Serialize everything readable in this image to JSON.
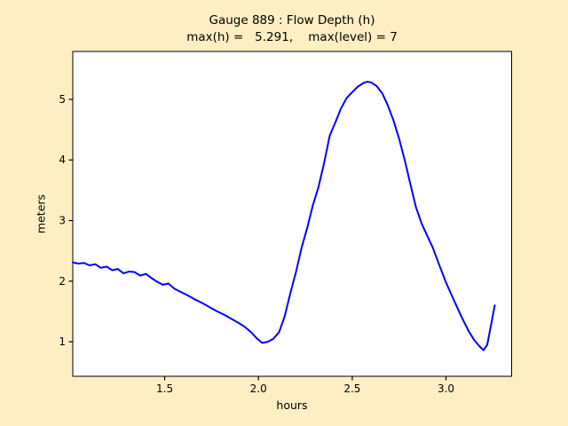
{
  "chart_data": {
    "type": "line",
    "title": "Gauge 889 : Flow Depth (h)",
    "subtitle": "max(h) =   5.291,    max(level) = 7",
    "max_h": "5.291",
    "max_level": "7",
    "xlabel": "hours",
    "ylabel": "meters",
    "xlim": [
      1.01,
      3.35
    ],
    "ylim": [
      0.43,
      5.79
    ],
    "xticks": [
      1.5,
      2.0,
      2.5,
      3.0
    ],
    "xtick_labels": [
      "1.5",
      "2.0",
      "2.5",
      "3.0"
    ],
    "yticks": [
      1,
      2,
      3,
      4,
      5
    ],
    "ytick_labels": [
      "1",
      "2",
      "3",
      "4",
      "5"
    ],
    "grid": false,
    "legend": null,
    "figure_background": "#FDEEC3",
    "axes_background": "#FFFFFF",
    "spine_color": "#000000",
    "series": [
      {
        "name": "flow-depth-h",
        "color": "#0000FF",
        "x": [
          1.01,
          1.04,
          1.07,
          1.1,
          1.13,
          1.16,
          1.19,
          1.22,
          1.25,
          1.28,
          1.31,
          1.34,
          1.37,
          1.4,
          1.43,
          1.46,
          1.49,
          1.52,
          1.55,
          1.58,
          1.62,
          1.66,
          1.7,
          1.74,
          1.78,
          1.82,
          1.86,
          1.9,
          1.93,
          1.96,
          1.99,
          2.02,
          2.05,
          2.08,
          2.11,
          2.14,
          2.17,
          2.2,
          2.23,
          2.26,
          2.29,
          2.32,
          2.35,
          2.38,
          2.41,
          2.44,
          2.47,
          2.5,
          2.53,
          2.56,
          2.58,
          2.6,
          2.63,
          2.66,
          2.69,
          2.72,
          2.75,
          2.78,
          2.81,
          2.84,
          2.87,
          2.9,
          2.93,
          2.96,
          3.0,
          3.04,
          3.08,
          3.12,
          3.15,
          3.18,
          3.2,
          3.22,
          3.24,
          3.26
        ],
        "y": [
          2.31,
          2.29,
          2.3,
          2.26,
          2.28,
          2.22,
          2.24,
          2.18,
          2.2,
          2.13,
          2.16,
          2.15,
          2.09,
          2.12,
          2.05,
          1.99,
          1.94,
          1.96,
          1.88,
          1.83,
          1.77,
          1.7,
          1.64,
          1.57,
          1.5,
          1.44,
          1.37,
          1.3,
          1.24,
          1.16,
          1.06,
          0.98,
          1.0,
          1.05,
          1.16,
          1.42,
          1.8,
          2.15,
          2.55,
          2.88,
          3.25,
          3.55,
          3.95,
          4.4,
          4.62,
          4.85,
          5.02,
          5.12,
          5.21,
          5.27,
          5.291,
          5.28,
          5.22,
          5.1,
          4.9,
          4.65,
          4.35,
          4.0,
          3.6,
          3.22,
          2.95,
          2.75,
          2.55,
          2.3,
          1.98,
          1.7,
          1.43,
          1.18,
          1.03,
          0.92,
          0.86,
          0.95,
          1.28,
          1.6
        ]
      }
    ]
  }
}
